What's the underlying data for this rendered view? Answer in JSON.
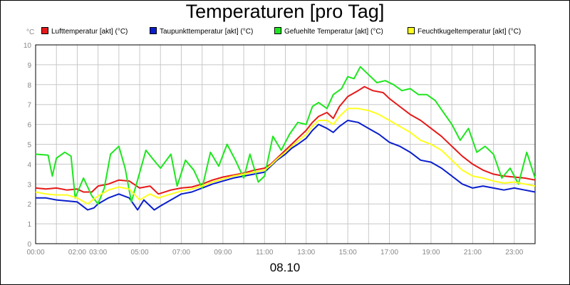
{
  "chart_data": {
    "type": "line",
    "title": "Temperaturen [pro Tag]",
    "unit": "°C",
    "xlabel": "08.10",
    "ylim": [
      0,
      10
    ],
    "yticks": [
      "0",
      "1",
      "2",
      "3",
      "4",
      "5",
      "6",
      "7",
      "8",
      "9",
      "10"
    ],
    "xlim": [
      0,
      24
    ],
    "xtick_labels": [
      "00:00",
      "02:00",
      "03:00",
      "05:00",
      "07:00",
      "09:00",
      "11:00",
      "13:00",
      "15:00",
      "17:00",
      "19:00",
      "21:00",
      "23:00"
    ],
    "xtick_hours": [
      0,
      2,
      3,
      5,
      7,
      9,
      11,
      13,
      15,
      17,
      19,
      21,
      23
    ],
    "grid": true,
    "legend_position": "top",
    "series": [
      {
        "name": "Lufttemperatur [akt] (°C)",
        "color": "#e61919",
        "points": [
          [
            0,
            2.8
          ],
          [
            0.5,
            2.75
          ],
          [
            1,
            2.8
          ],
          [
            1.5,
            2.7
          ],
          [
            2,
            2.75
          ],
          [
            2.3,
            2.6
          ],
          [
            2.7,
            2.6
          ],
          [
            3,
            2.9
          ],
          [
            3.5,
            3.0
          ],
          [
            4,
            3.2
          ],
          [
            4.5,
            3.15
          ],
          [
            5,
            2.8
          ],
          [
            5.5,
            2.9
          ],
          [
            5.9,
            2.5
          ],
          [
            6.5,
            2.7
          ],
          [
            7,
            2.8
          ],
          [
            7.5,
            2.85
          ],
          [
            8,
            3.0
          ],
          [
            8.5,
            3.2
          ],
          [
            9,
            3.35
          ],
          [
            9.5,
            3.45
          ],
          [
            10,
            3.55
          ],
          [
            10.5,
            3.7
          ],
          [
            11,
            3.8
          ],
          [
            11.3,
            4.0
          ],
          [
            11.6,
            4.3
          ],
          [
            12,
            4.7
          ],
          [
            12.3,
            5.0
          ],
          [
            12.6,
            5.3
          ],
          [
            13,
            5.7
          ],
          [
            13.3,
            6.1
          ],
          [
            13.6,
            6.4
          ],
          [
            14,
            6.6
          ],
          [
            14.3,
            6.3
          ],
          [
            14.6,
            6.9
          ],
          [
            15,
            7.4
          ],
          [
            15.5,
            7.7
          ],
          [
            15.8,
            7.9
          ],
          [
            16.2,
            7.7
          ],
          [
            16.7,
            7.6
          ],
          [
            17,
            7.3
          ],
          [
            17.5,
            6.9
          ],
          [
            18,
            6.5
          ],
          [
            18.5,
            6.2
          ],
          [
            19,
            5.8
          ],
          [
            19.5,
            5.4
          ],
          [
            20,
            4.9
          ],
          [
            20.5,
            4.4
          ],
          [
            21,
            4.0
          ],
          [
            21.5,
            3.7
          ],
          [
            22,
            3.5
          ],
          [
            22.5,
            3.4
          ],
          [
            23,
            3.35
          ],
          [
            23.5,
            3.3
          ],
          [
            24,
            3.2
          ]
        ]
      },
      {
        "name": "Taupunkttemperatur [akt] (°C)",
        "color": "#0a1ecc",
        "points": [
          [
            0,
            2.3
          ],
          [
            0.5,
            2.3
          ],
          [
            1,
            2.2
          ],
          [
            1.5,
            2.15
          ],
          [
            2,
            2.1
          ],
          [
            2.5,
            1.7
          ],
          [
            2.8,
            1.8
          ],
          [
            3,
            2.0
          ],
          [
            3.5,
            2.3
          ],
          [
            4,
            2.5
          ],
          [
            4.5,
            2.3
          ],
          [
            4.9,
            1.7
          ],
          [
            5.2,
            2.2
          ],
          [
            5.7,
            1.7
          ],
          [
            6,
            1.9
          ],
          [
            6.5,
            2.2
          ],
          [
            7,
            2.5
          ],
          [
            7.5,
            2.6
          ],
          [
            8,
            2.8
          ],
          [
            8.5,
            3.0
          ],
          [
            9,
            3.15
          ],
          [
            9.5,
            3.3
          ],
          [
            10,
            3.4
          ],
          [
            10.5,
            3.5
          ],
          [
            11,
            3.6
          ],
          [
            11.3,
            3.9
          ],
          [
            11.6,
            4.2
          ],
          [
            12,
            4.5
          ],
          [
            12.3,
            4.8
          ],
          [
            12.6,
            5.0
          ],
          [
            13,
            5.3
          ],
          [
            13.3,
            5.7
          ],
          [
            13.6,
            6.0
          ],
          [
            14,
            5.8
          ],
          [
            14.3,
            5.6
          ],
          [
            14.6,
            5.9
          ],
          [
            15,
            6.2
          ],
          [
            15.5,
            6.1
          ],
          [
            16,
            5.8
          ],
          [
            16.5,
            5.5
          ],
          [
            17,
            5.1
          ],
          [
            17.5,
            4.9
          ],
          [
            18,
            4.6
          ],
          [
            18.5,
            4.2
          ],
          [
            19,
            4.1
          ],
          [
            19.5,
            3.8
          ],
          [
            20,
            3.4
          ],
          [
            20.5,
            3.0
          ],
          [
            21,
            2.8
          ],
          [
            21.5,
            2.9
          ],
          [
            22,
            2.8
          ],
          [
            22.5,
            2.7
          ],
          [
            23,
            2.8
          ],
          [
            23.5,
            2.7
          ],
          [
            24,
            2.6
          ]
        ]
      },
      {
        "name": "Gefuehlte Temperatur [akt] (°C)",
        "color": "#1ee61e",
        "points": [
          [
            0,
            4.5
          ],
          [
            0.6,
            4.45
          ],
          [
            0.8,
            3.4
          ],
          [
            1,
            4.3
          ],
          [
            1.4,
            4.6
          ],
          [
            1.7,
            4.4
          ],
          [
            1.9,
            2.3
          ],
          [
            2.3,
            3.3
          ],
          [
            2.7,
            2.4
          ],
          [
            3,
            2.0
          ],
          [
            3.3,
            2.8
          ],
          [
            3.6,
            4.5
          ],
          [
            4,
            4.9
          ],
          [
            4.3,
            3.8
          ],
          [
            4.6,
            2.1
          ],
          [
            4.9,
            3.2
          ],
          [
            5.3,
            4.7
          ],
          [
            5.6,
            4.3
          ],
          [
            6,
            3.8
          ],
          [
            6.5,
            4.5
          ],
          [
            6.8,
            2.9
          ],
          [
            7.2,
            4.2
          ],
          [
            7.6,
            3.7
          ],
          [
            8,
            2.8
          ],
          [
            8.4,
            4.6
          ],
          [
            8.8,
            3.9
          ],
          [
            9.2,
            5.0
          ],
          [
            9.6,
            4.2
          ],
          [
            10,
            3.3
          ],
          [
            10.3,
            4.5
          ],
          [
            10.7,
            3.1
          ],
          [
            11,
            3.4
          ],
          [
            11.4,
            5.4
          ],
          [
            11.8,
            4.7
          ],
          [
            12.2,
            5.5
          ],
          [
            12.6,
            6.1
          ],
          [
            13,
            6.0
          ],
          [
            13.3,
            6.9
          ],
          [
            13.6,
            7.1
          ],
          [
            14,
            6.8
          ],
          [
            14.3,
            7.5
          ],
          [
            14.7,
            7.8
          ],
          [
            15,
            8.4
          ],
          [
            15.3,
            8.3
          ],
          [
            15.6,
            8.9
          ],
          [
            16,
            8.5
          ],
          [
            16.4,
            8.1
          ],
          [
            16.8,
            8.2
          ],
          [
            17.2,
            8.0
          ],
          [
            17.6,
            7.7
          ],
          [
            18,
            7.8
          ],
          [
            18.4,
            7.5
          ],
          [
            18.8,
            7.5
          ],
          [
            19.2,
            7.2
          ],
          [
            19.6,
            6.6
          ],
          [
            20,
            6.0
          ],
          [
            20.4,
            5.2
          ],
          [
            20.8,
            5.8
          ],
          [
            21.2,
            4.6
          ],
          [
            21.6,
            4.9
          ],
          [
            22,
            4.5
          ],
          [
            22.4,
            3.3
          ],
          [
            22.8,
            3.8
          ],
          [
            23.2,
            3.0
          ],
          [
            23.6,
            4.6
          ],
          [
            24,
            3.3
          ]
        ]
      },
      {
        "name": "Feuchtkugeltemperatur [akt] (°C)",
        "color": "#ffff1e",
        "points": [
          [
            0,
            2.6
          ],
          [
            0.5,
            2.5
          ],
          [
            1,
            2.45
          ],
          [
            1.5,
            2.45
          ],
          [
            2,
            2.3
          ],
          [
            2.5,
            2.0
          ],
          [
            3,
            2.4
          ],
          [
            3.5,
            2.7
          ],
          [
            4,
            2.85
          ],
          [
            4.5,
            2.75
          ],
          [
            5,
            2.2
          ],
          [
            5.5,
            2.5
          ],
          [
            5.9,
            2.3
          ],
          [
            6.5,
            2.5
          ],
          [
            7,
            2.65
          ],
          [
            7.5,
            2.75
          ],
          [
            8,
            2.9
          ],
          [
            8.5,
            3.1
          ],
          [
            9,
            3.25
          ],
          [
            9.5,
            3.4
          ],
          [
            10,
            3.5
          ],
          [
            10.5,
            3.6
          ],
          [
            11,
            3.7
          ],
          [
            11.3,
            3.95
          ],
          [
            11.6,
            4.25
          ],
          [
            12,
            4.6
          ],
          [
            12.3,
            4.9
          ],
          [
            12.6,
            5.15
          ],
          [
            13,
            5.5
          ],
          [
            13.3,
            5.9
          ],
          [
            13.6,
            6.2
          ],
          [
            14,
            6.2
          ],
          [
            14.3,
            6.0
          ],
          [
            14.6,
            6.4
          ],
          [
            15,
            6.8
          ],
          [
            15.5,
            6.8
          ],
          [
            16,
            6.7
          ],
          [
            16.5,
            6.5
          ],
          [
            17,
            6.2
          ],
          [
            17.5,
            5.9
          ],
          [
            18,
            5.6
          ],
          [
            18.5,
            5.2
          ],
          [
            19,
            5.0
          ],
          [
            19.5,
            4.7
          ],
          [
            20,
            4.2
          ],
          [
            20.5,
            3.7
          ],
          [
            21,
            3.4
          ],
          [
            21.5,
            3.3
          ],
          [
            22,
            3.15
          ],
          [
            22.5,
            3.05
          ],
          [
            23,
            3.1
          ],
          [
            23.5,
            3.0
          ],
          [
            24,
            2.9
          ]
        ]
      }
    ]
  }
}
